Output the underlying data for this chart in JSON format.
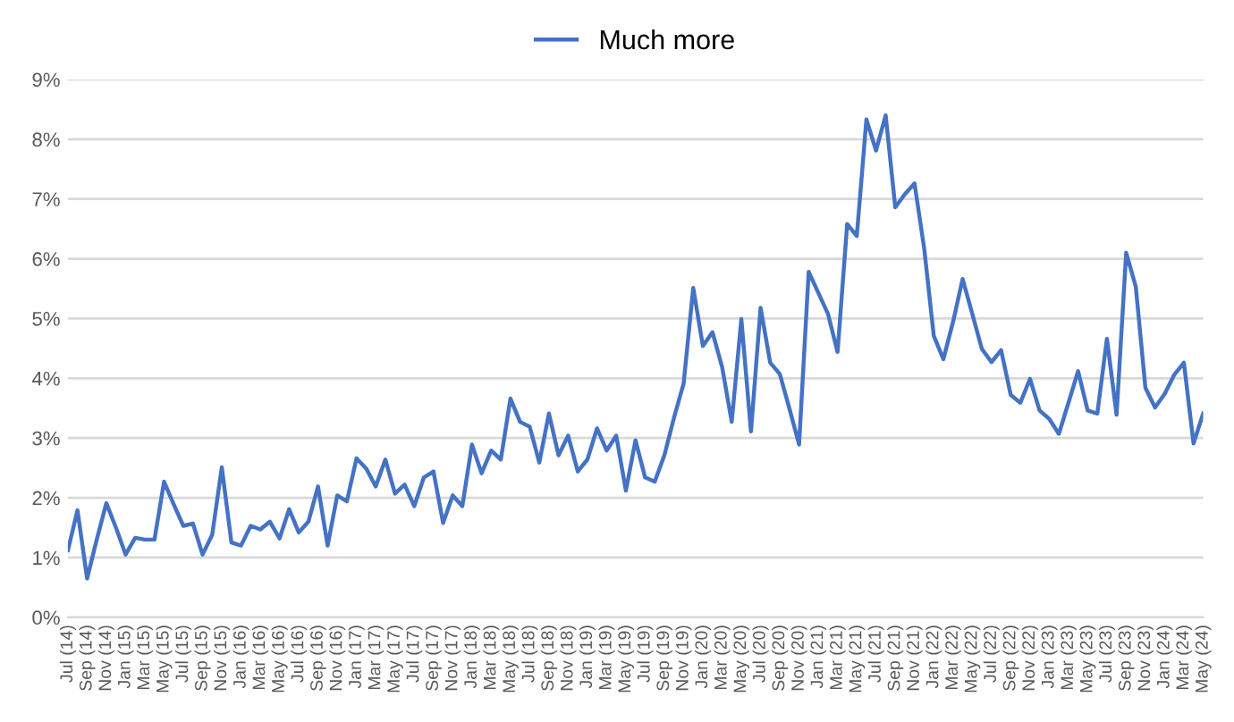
{
  "chart_data": {
    "type": "line",
    "categories": [
      "Jul (14)",
      null,
      "Sep (14)",
      null,
      "Nov (14)",
      null,
      "Jan (15)",
      null,
      "Mar (15)",
      null,
      "May (15)",
      null,
      "Jul (15)",
      null,
      "Sep (15)",
      null,
      "Nov (15)",
      null,
      "Jan (16)",
      null,
      "Mar (16)",
      null,
      "May (16)",
      null,
      "Jul (16)",
      null,
      "Sep (16)",
      null,
      "Nov (16)",
      null,
      "Jan (17)",
      null,
      "Mar (17)",
      null,
      "May (17)",
      null,
      "Jul (17)",
      null,
      "Sep (17)",
      null,
      "Nov (17)",
      null,
      "Jan (18)",
      null,
      "Mar (18)",
      null,
      "May (18)",
      null,
      "Jul (18)",
      null,
      "Sep (18)",
      null,
      "Nov (18)",
      null,
      "Jan (19)",
      null,
      "Mar (19)",
      null,
      "May (19)",
      null,
      "Jul (19)",
      null,
      "Sep (19)",
      null,
      "Nov (19)",
      null,
      "Jan (20)",
      null,
      "Mar (20)",
      null,
      "May (20)",
      null,
      "Jul (20)",
      null,
      "Sep (20)",
      null,
      "Nov (20)",
      null,
      "Jan (21)",
      null,
      "Mar (21)",
      null,
      "May (21)",
      null,
      "Jul (21)",
      null,
      "Sep (21)",
      null,
      "Nov (21)",
      null,
      "Jan (22)",
      null,
      "Mar (22)",
      null,
      "May (22)",
      null,
      "Jul (22)",
      null,
      "Sep (22)",
      null,
      "Nov (22)",
      null,
      "Jan (23)",
      null,
      "Mar (23)",
      null,
      "May (23)",
      null,
      "Jul (23)",
      null,
      "Sep (23)",
      null,
      "Nov (23)",
      null,
      "Jan (24)",
      null,
      "Mar (24)",
      null,
      "May (24)"
    ],
    "series": [
      {
        "name": "Much more",
        "color": "#4472c4",
        "values": [
          1.12,
          1.79,
          0.65,
          1.3,
          1.91,
          1.5,
          1.05,
          1.33,
          1.3,
          1.3,
          2.27,
          1.89,
          1.53,
          1.57,
          1.05,
          1.38,
          2.51,
          1.25,
          1.2,
          1.53,
          1.47,
          1.6,
          1.32,
          1.81,
          1.42,
          1.6,
          2.19,
          1.2,
          2.04,
          1.94,
          2.66,
          2.49,
          2.19,
          2.64,
          2.07,
          2.22,
          1.86,
          2.34,
          2.44,
          1.58,
          2.04,
          1.86,
          2.89,
          2.41,
          2.79,
          2.64,
          3.66,
          3.27,
          3.19,
          2.59,
          3.41,
          2.71,
          3.04,
          2.44,
          2.64,
          3.16,
          2.79,
          3.04,
          2.12,
          2.96,
          2.34,
          2.27,
          2.71,
          3.34,
          3.91,
          5.51,
          4.54,
          4.77,
          4.19,
          3.27,
          4.99,
          3.11,
          5.18,
          4.26,
          4.07,
          3.49,
          2.89,
          5.78,
          5.43,
          5.08,
          4.44,
          6.58,
          6.38,
          8.33,
          7.81,
          8.4,
          6.86,
          7.08,
          7.26,
          6.18,
          4.71,
          4.32,
          4.94,
          5.66,
          5.08,
          4.49,
          4.27,
          4.47,
          3.72,
          3.59,
          3.99,
          3.46,
          3.32,
          3.07,
          3.59,
          4.12,
          3.46,
          3.41,
          4.66,
          3.39,
          6.1,
          5.53,
          3.84,
          3.51,
          3.74,
          4.06,
          4.26,
          2.91,
          3.41
        ]
      }
    ],
    "ylim": [
      0,
      9
    ],
    "yticks": [
      {
        "value": 0,
        "label": "0%"
      },
      {
        "value": 1,
        "label": "1%"
      },
      {
        "value": 2,
        "label": "2%"
      },
      {
        "value": 3,
        "label": "3%"
      },
      {
        "value": 4,
        "label": "4%"
      },
      {
        "value": 5,
        "label": "5%"
      },
      {
        "value": 6,
        "label": "6%"
      },
      {
        "value": 7,
        "label": "7%"
      },
      {
        "value": 8,
        "label": "8%"
      },
      {
        "value": 9,
        "label": "9%"
      }
    ],
    "grid": "y",
    "legend": "top",
    "marker": "none",
    "line_style": "solid"
  }
}
